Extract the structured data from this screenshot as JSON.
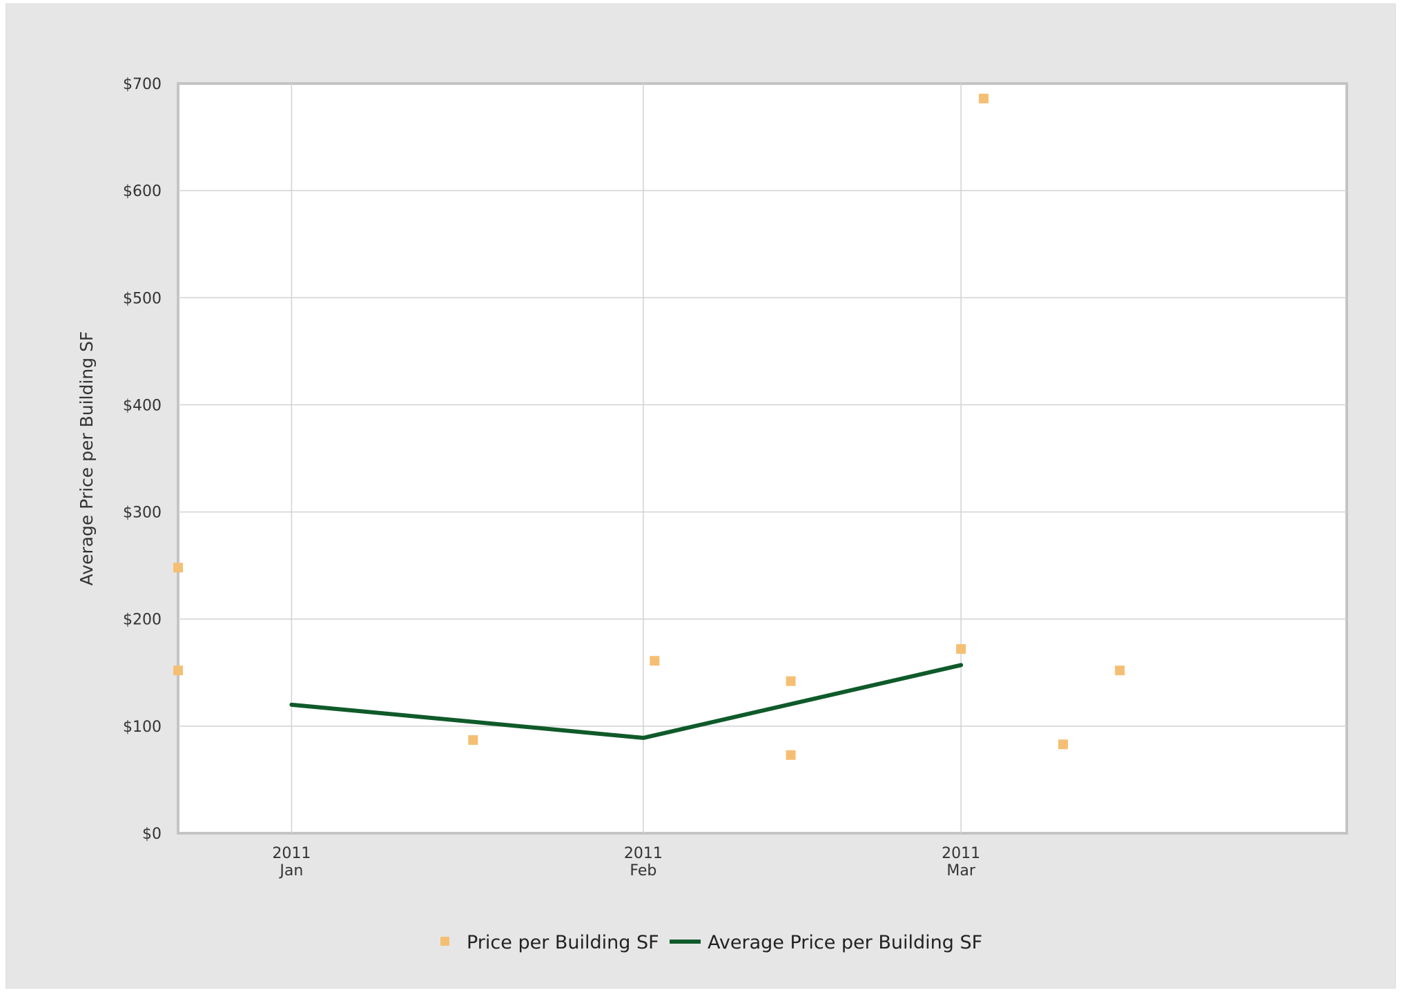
{
  "chart_data": {
    "type": "line",
    "title": "",
    "ylabel": "Average Price per Building SF",
    "xlabel": "",
    "ylim": [
      0,
      700
    ],
    "yticks": [
      0,
      100,
      200,
      300,
      400,
      500,
      600,
      700
    ],
    "ytick_labels": [
      "$0",
      "$100",
      "$200",
      "$300",
      "$400",
      "$500",
      "$600",
      "$700"
    ],
    "xlim": [
      "2010-12-22",
      "2011-04-04"
    ],
    "xticks": [
      {
        "date": "2011-01-01",
        "line1": "2011",
        "line2": "Jan"
      },
      {
        "date": "2011-02-01",
        "line1": "2011",
        "line2": "Feb"
      },
      {
        "date": "2011-03-01",
        "line1": "2011",
        "line2": "Mar"
      }
    ],
    "grid": true,
    "legend_position": "bottom-center",
    "series": [
      {
        "name": "Price per Building SF",
        "kind": "scatter",
        "marker": "square",
        "color": "#f5bf73",
        "points": [
          {
            "x": "2010-12-22",
            "y": 248
          },
          {
            "x": "2010-12-22",
            "y": 152
          },
          {
            "x": "2011-01-17",
            "y": 87
          },
          {
            "x": "2011-02-02",
            "y": 161
          },
          {
            "x": "2011-02-14",
            "y": 142
          },
          {
            "x": "2011-02-14",
            "y": 73
          },
          {
            "x": "2011-03-01",
            "y": 172
          },
          {
            "x": "2011-03-03",
            "y": 686
          },
          {
            "x": "2011-03-10",
            "y": 83
          },
          {
            "x": "2011-03-15",
            "y": 152
          }
        ]
      },
      {
        "name": "Average Price per Building SF",
        "kind": "line",
        "color": "#0f5a2a",
        "points": [
          {
            "x": "2011-01-01",
            "y": 120
          },
          {
            "x": "2011-02-01",
            "y": 89
          },
          {
            "x": "2011-03-01",
            "y": 157
          }
        ]
      }
    ]
  }
}
